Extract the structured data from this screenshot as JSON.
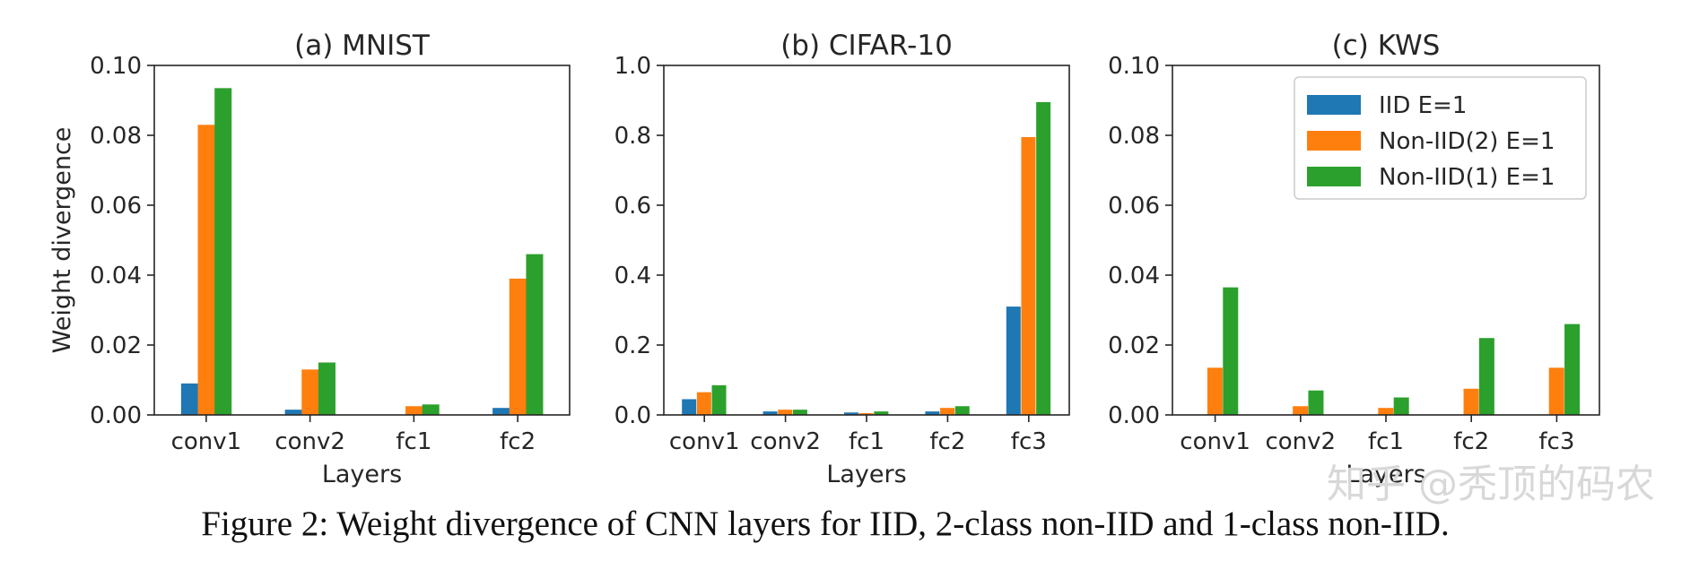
{
  "chart_data": [
    {
      "type": "bar",
      "title": "(a) MNIST",
      "xlabel": "Layers",
      "ylabel": "Weight divergence",
      "categories": [
        "conv1",
        "conv2",
        "fc1",
        "fc2"
      ],
      "ylim": [
        0,
        0.1
      ],
      "yticks": [
        "0.00",
        "0.02",
        "0.04",
        "0.06",
        "0.08",
        "0.10"
      ],
      "series": [
        {
          "name": "IID E=1",
          "values": [
            0.009,
            0.0015,
            0.0,
            0.002
          ]
        },
        {
          "name": "Non-IID(2) E=1",
          "values": [
            0.083,
            0.013,
            0.0025,
            0.039
          ]
        },
        {
          "name": "Non-IID(1) E=1",
          "values": [
            0.0935,
            0.015,
            0.003,
            0.046
          ]
        }
      ]
    },
    {
      "type": "bar",
      "title": "(b) CIFAR-10",
      "xlabel": "Layers",
      "ylabel": "",
      "categories": [
        "conv1",
        "conv2",
        "fc1",
        "fc2",
        "fc3"
      ],
      "ylim": [
        0,
        1.0
      ],
      "yticks": [
        "0.0",
        "0.2",
        "0.4",
        "0.6",
        "0.8",
        "1.0"
      ],
      "series": [
        {
          "name": "IID E=1",
          "values": [
            0.045,
            0.01,
            0.007,
            0.01,
            0.31
          ]
        },
        {
          "name": "Non-IID(2) E=1",
          "values": [
            0.065,
            0.015,
            0.005,
            0.02,
            0.795
          ]
        },
        {
          "name": "Non-IID(1) E=1",
          "values": [
            0.085,
            0.015,
            0.01,
            0.025,
            0.895
          ]
        }
      ]
    },
    {
      "type": "bar",
      "title": "(c) KWS",
      "xlabel": "Layers",
      "ylabel": "",
      "categories": [
        "conv1",
        "conv2",
        "fc1",
        "fc2",
        "fc3"
      ],
      "ylim": [
        0,
        0.1
      ],
      "yticks": [
        "0.00",
        "0.02",
        "0.04",
        "0.06",
        "0.08",
        "0.10"
      ],
      "legend": "top-right",
      "series": [
        {
          "name": "IID E=1",
          "values": [
            0.0,
            0.0,
            0.0,
            0.0,
            0.0
          ]
        },
        {
          "name": "Non-IID(2) E=1",
          "values": [
            0.0135,
            0.0025,
            0.002,
            0.0075,
            0.0135
          ]
        },
        {
          "name": "Non-IID(1) E=1",
          "values": [
            0.0365,
            0.007,
            0.005,
            0.022,
            0.026
          ]
        }
      ]
    }
  ],
  "legend": {
    "entries": [
      "IID E=1",
      "Non-IID(2) E=1",
      "Non-IID(1) E=1"
    ]
  },
  "colors": {
    "iid": "#1f77b4",
    "noniid2": "#ff7f0e",
    "noniid1": "#2ca02c"
  },
  "caption": "Figure 2: Weight divergence of CNN layers for IID, 2-class non-IID and 1-class non-IID.",
  "watermark": "知乎 @秃顶的码农"
}
